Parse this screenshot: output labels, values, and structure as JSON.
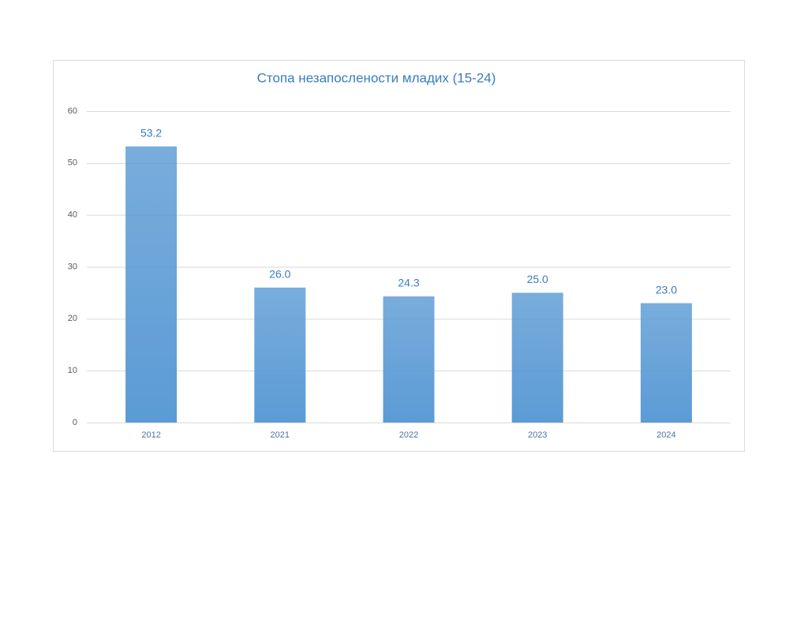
{
  "chart_data": {
    "type": "bar",
    "title": "Стопа незапослености младих (15-24)",
    "categories": [
      "2012",
      "2021",
      "2022",
      "2023",
      "2024"
    ],
    "values": [
      53.2,
      26.0,
      24.3,
      25.0,
      23.0
    ],
    "value_labels": [
      "53.2",
      "26.0",
      "24.3",
      "25.0",
      "23.0"
    ],
    "color": "#5b9bd5",
    "ylim": [
      0,
      60
    ],
    "yticks": [
      0,
      10,
      20,
      30,
      40,
      50,
      60
    ],
    "grid": true
  }
}
